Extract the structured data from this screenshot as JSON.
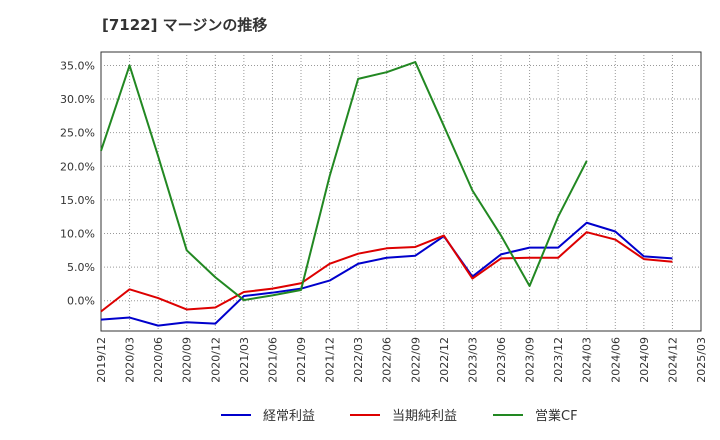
{
  "title": "[7122]  マージンの推移",
  "chart_data": {
    "type": "line",
    "x": [
      "2019/12",
      "2020/03",
      "2020/06",
      "2020/09",
      "2020/12",
      "2021/03",
      "2021/06",
      "2021/09",
      "2021/12",
      "2022/03",
      "2022/06",
      "2022/09",
      "2022/12",
      "2023/03",
      "2023/06",
      "2023/09",
      "2023/12",
      "2024/03",
      "2024/06",
      "2024/09",
      "2024/12",
      "2025/03"
    ],
    "ylim": [
      -4.5,
      37.0
    ],
    "yticks": [
      0.0,
      5.0,
      10.0,
      15.0,
      20.0,
      25.0,
      30.0,
      35.0
    ],
    "ytick_labels": [
      "0.0%",
      "5.0%",
      "10.0%",
      "15.0%",
      "20.0%",
      "25.0%",
      "30.0%",
      "35.0%"
    ],
    "grid": true,
    "legend_position": "bottom",
    "series": [
      {
        "name": "経常利益",
        "color": "#0000cc",
        "values": [
          -2.8,
          -2.5,
          -3.7,
          -3.2,
          -3.4,
          0.7,
          1.2,
          1.8,
          3.0,
          5.5,
          6.4,
          6.7,
          9.6,
          3.6,
          6.9,
          7.9,
          7.9,
          11.6,
          10.3,
          6.6,
          6.3,
          null
        ]
      },
      {
        "name": "当期純利益",
        "color": "#dd0000",
        "values": [
          -1.6,
          1.7,
          0.4,
          -1.3,
          -1.0,
          1.3,
          1.8,
          2.6,
          5.5,
          7.0,
          7.8,
          8.0,
          9.7,
          3.3,
          6.3,
          6.4,
          6.4,
          10.2,
          9.1,
          6.2,
          5.8,
          null
        ]
      },
      {
        "name": "営業CF",
        "color": "#228822",
        "values": [
          22.3,
          35.0,
          21.5,
          7.5,
          3.5,
          0.1,
          0.8,
          1.6,
          18.5,
          33.0,
          34.0,
          35.5,
          26.0,
          16.4,
          9.7,
          2.2,
          12.5,
          20.8,
          null,
          null,
          null,
          null
        ]
      }
    ]
  }
}
